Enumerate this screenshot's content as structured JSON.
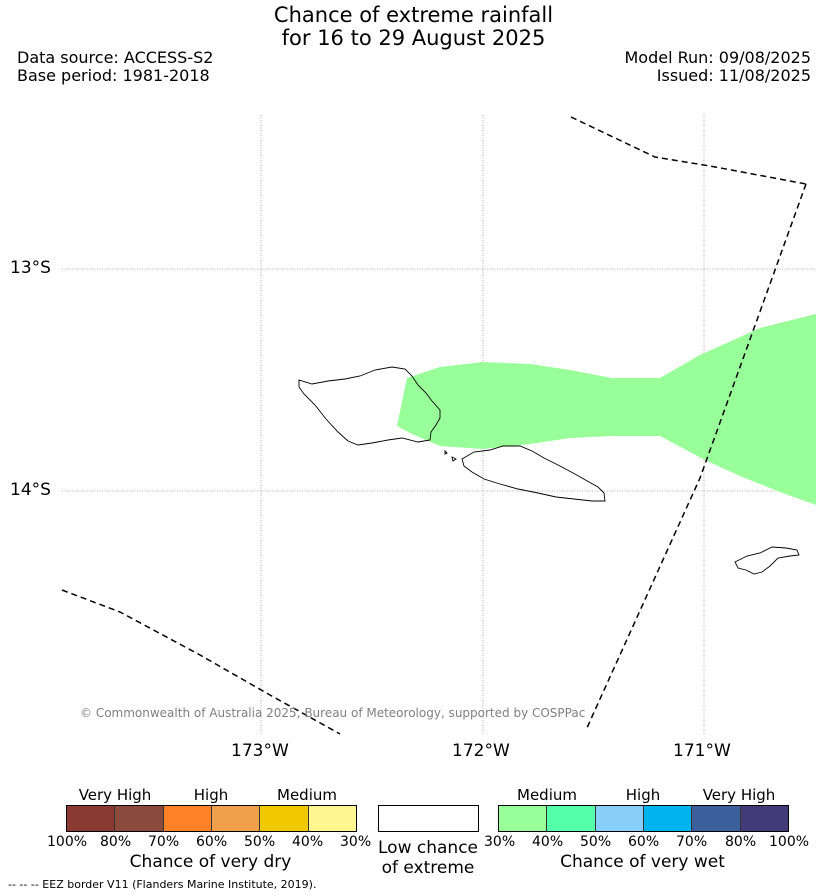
{
  "title": {
    "line1": "Chance of extreme rainfall",
    "line2": "for 16 to 29 August 2025"
  },
  "meta": {
    "data_source": "Data source: ACCESS-S2",
    "base_period": "Base period: 1981-2018",
    "model_run": "Model Run: 09/08/2025",
    "issued": "Issued: 11/08/2025"
  },
  "map": {
    "lat_labels": [
      "13°S",
      "14°S"
    ],
    "lon_labels": [
      "173°W",
      "172°W",
      "171°W"
    ],
    "copyright": "© Commonwealth of Australia 2025, Bureau of Meteorology, supported by COSPPac",
    "forecast_area_color": "#99ff99",
    "features": [
      "Savai'i",
      "Upolu",
      "Tutuila",
      "EEZ border"
    ]
  },
  "legend": {
    "dry": {
      "categories": [
        "Very High",
        "High",
        "Medium"
      ],
      "colors": [
        "#8b3a32",
        "#8b4a3c",
        "#ff8326",
        "#f0a04b",
        "#f0c800",
        "#fff68f"
      ],
      "ticks": [
        "100%",
        "80%",
        "70%",
        "60%",
        "50%",
        "40%",
        "30%"
      ],
      "caption": "Chance of very dry"
    },
    "low": {
      "color": "#ffffff",
      "caption_line1": "Low chance",
      "caption_line2": "of extreme"
    },
    "wet": {
      "categories": [
        "Medium",
        "High",
        "Very High"
      ],
      "colors": [
        "#99ff99",
        "#55ffaa",
        "#87cefa",
        "#00b4f0",
        "#3a5f9b",
        "#433a78"
      ],
      "ticks": [
        "30%",
        "40%",
        "50%",
        "60%",
        "70%",
        "80%",
        "100%"
      ],
      "caption": "Chance of very wet"
    }
  },
  "footer": {
    "eez_note": "--  --  -- EEZ border V11 (Flanders Marine Institute, 2019)."
  }
}
